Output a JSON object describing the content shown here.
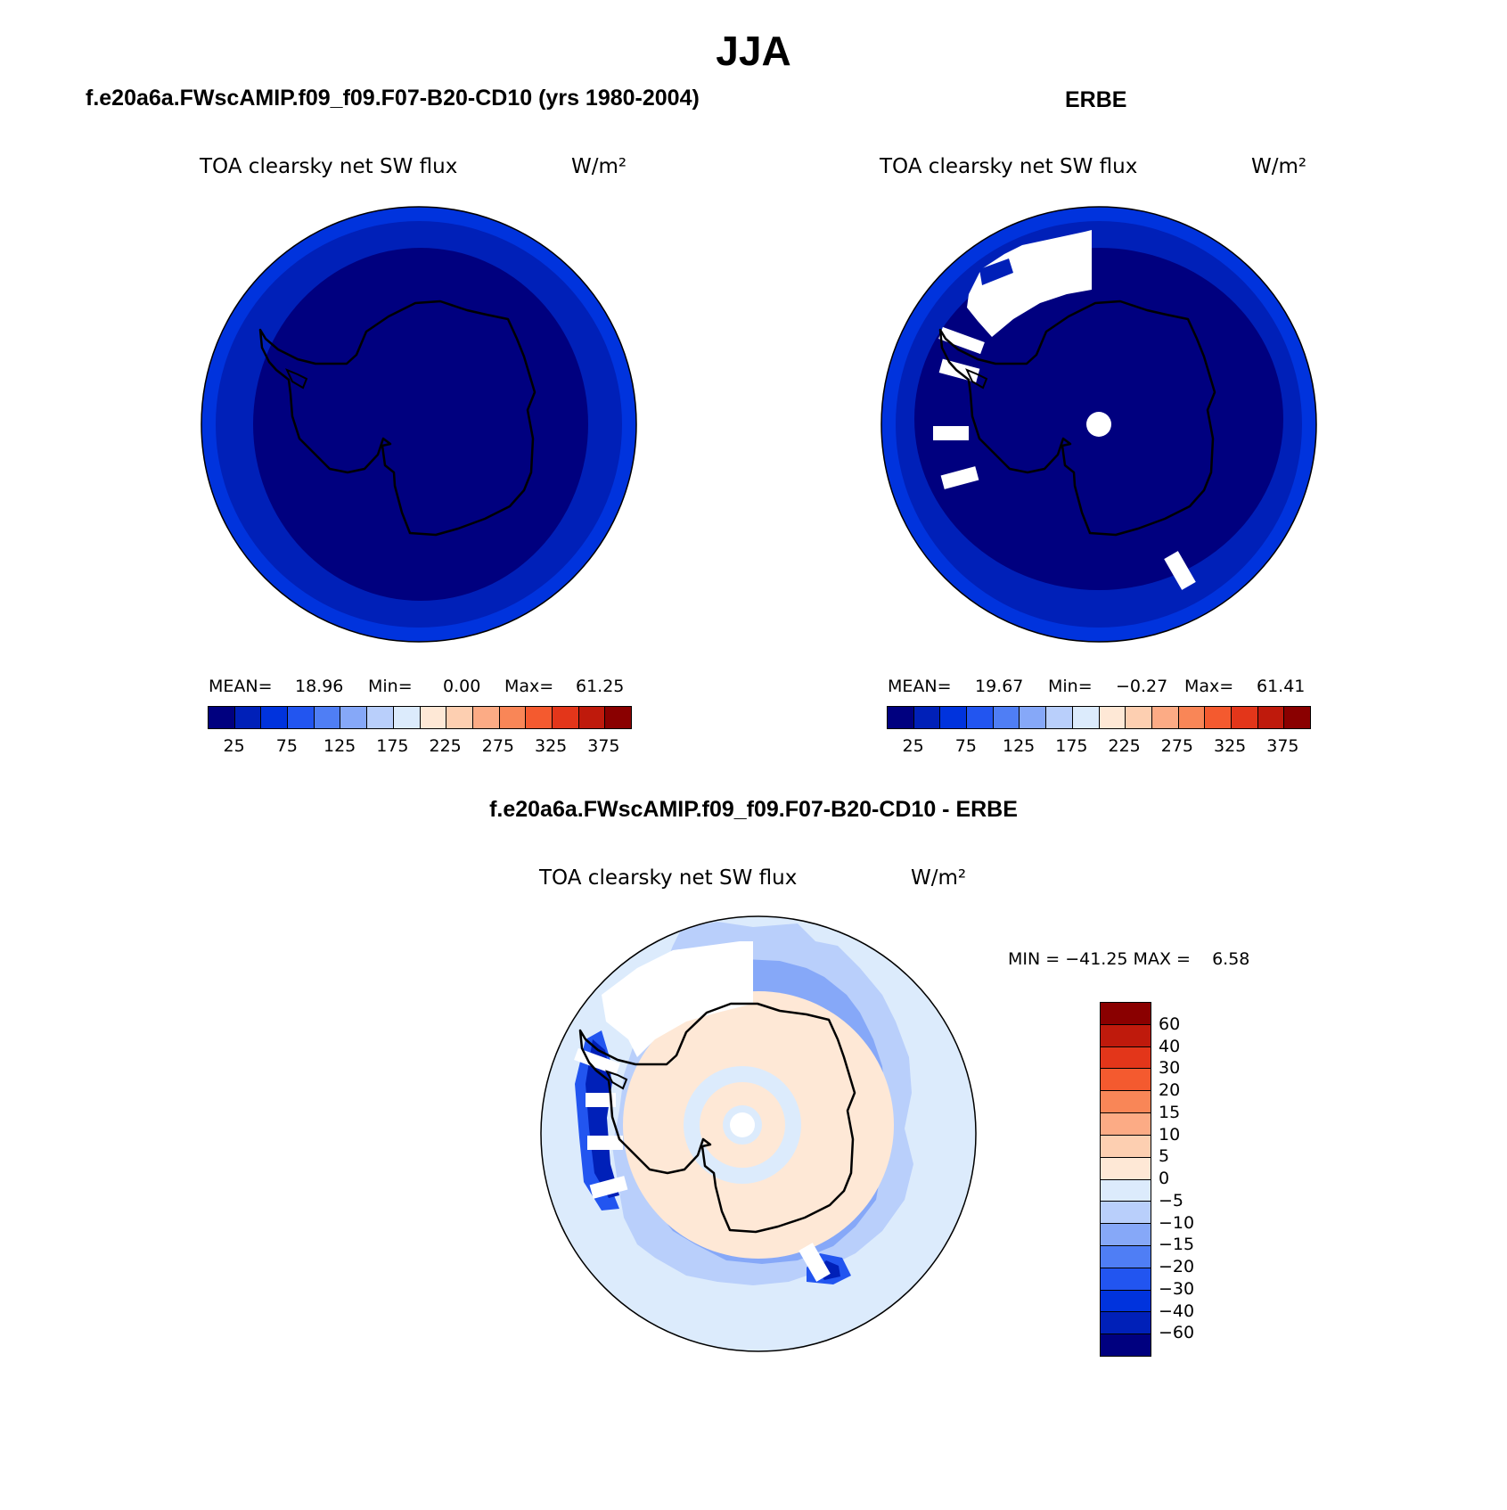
{
  "main_title": "JJA",
  "palette": [
    "#00007f",
    "#0020b8",
    "#0033dd",
    "#2255f0",
    "#4f7ef5",
    "#86a8f8",
    "#b9cffb",
    "#dcebfc",
    "#fee8d6",
    "#fdcfb1",
    "#fcab85",
    "#f98657",
    "#f45a2f",
    "#e3361a",
    "#bf1a0c",
    "#8a0000"
  ],
  "diff_palette": [
    "#00007f",
    "#0020b8",
    "#0033dd",
    "#2255f0",
    "#4f7ef5",
    "#86a8f8",
    "#b9cffb",
    "#dcebfc",
    "#fee8d6",
    "#fdcfb1",
    "#fcab85",
    "#f98657",
    "#f45a2f",
    "#e3361a",
    "#bf1a0c",
    "#8a0000"
  ],
  "panels": {
    "model": {
      "title": "f.e20a6a.FWscAMIP.f09_f09.F07-B20-CD10 (yrs 1980-2004)",
      "variable": "TOA clearsky net SW flux",
      "units": "W/m²",
      "mean_label": "MEAN=",
      "mean": "18.96",
      "min_label": "Min=",
      "min": "0.00",
      "max_label": "Max=",
      "max": "61.25",
      "colorbar_ticks": [
        "25",
        "75",
        "125",
        "175",
        "225",
        "275",
        "325",
        "375"
      ]
    },
    "obs": {
      "title": "ERBE",
      "variable": "TOA clearsky net SW flux",
      "units": "W/m²",
      "mean_label": "MEAN=",
      "mean": "19.67",
      "min_label": "Min=",
      "min": "−0.27",
      "max_label": "Max=",
      "max": "61.41",
      "colorbar_ticks": [
        "25",
        "75",
        "125",
        "175",
        "225",
        "275",
        "325",
        "375"
      ]
    },
    "diff": {
      "title": "f.e20a6a.FWscAMIP.f09_f09.F07-B20-CD10 - ERBE",
      "variable": "TOA clearsky net SW flux",
      "units": "W/m²",
      "minmax": "MIN = −41.25 MAX =    6.58",
      "colorbar_ticks": [
        "60",
        "40",
        "30",
        "20",
        "15",
        "10",
        "5",
        "0",
        "−5",
        "−10",
        "−15",
        "−20",
        "−30",
        "−40",
        "−60"
      ]
    }
  }
}
